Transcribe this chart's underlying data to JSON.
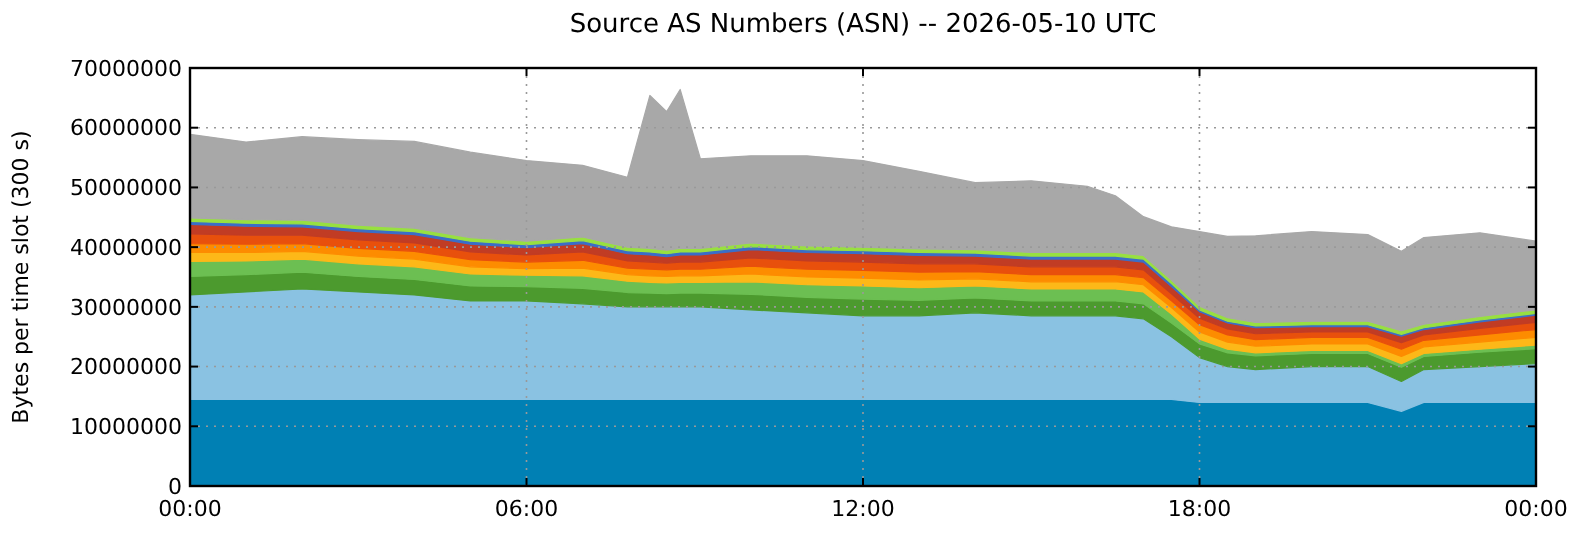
{
  "chart_data": {
    "type": "area",
    "stacked": true,
    "title": "Source AS Numbers (ASN) -- 2026-05-10 UTC",
    "ylabel": "Bytes per time slot (300 s)",
    "x": [
      0,
      1,
      2,
      3,
      4,
      5,
      6,
      7,
      7.8,
      8.2,
      8.5,
      8.74,
      9.1,
      10,
      11,
      12,
      13,
      14,
      15,
      16,
      16.5,
      17,
      17.5,
      18,
      18.5,
      19,
      20,
      21,
      21.6,
      22,
      23,
      24
    ],
    "series": [
      {
        "color": "#0080b4",
        "values": [
          14500000.0,
          14500000.0,
          14500000.0,
          14500000.0,
          14500000.0,
          14500000.0,
          14500000.0,
          14500000.0,
          14500000.0,
          14500000.0,
          14500000.0,
          14500000.0,
          14500000.0,
          14500000.0,
          14500000.0,
          14500000.0,
          14500000.0,
          14500000.0,
          14500000.0,
          14500000.0,
          14500000.0,
          14500000.0,
          14500000.0,
          14000000.0,
          14000000.0,
          14000000.0,
          14000000.0,
          14000000.0,
          12500000.0,
          14000000.0,
          14000000.0,
          14000000.0
        ]
      },
      {
        "color": "#8ac2e2",
        "values": [
          17500000.0,
          18000000.0,
          18500000.0,
          18000000.0,
          17500000.0,
          16500000.0,
          16500000.0,
          16000000.0,
          15500000.0,
          15500000.0,
          15500000.0,
          15500000.0,
          15500000.0,
          15000000.0,
          14500000.0,
          14000000.0,
          14000000.0,
          14500000.0,
          14000000.0,
          14000000.0,
          14000000.0,
          13500000.0,
          10500000.0,
          7500000.0,
          6000000.0,
          5500000.0,
          6000000.0,
          6000000.0,
          5000000.0,
          5500000.0,
          6000000.0,
          6500000.0
        ]
      },
      {
        "color": "#4c9a2e",
        "values": [
          3100000.0,
          2900000.0,
          2800000.0,
          2600000.0,
          2600000.0,
          2500000.0,
          2400000.0,
          2600000.0,
          2400000.0,
          2300000.0,
          2200000.0,
          2300000.0,
          2300000.0,
          2600000.0,
          2600000.0,
          2800000.0,
          2600000.0,
          2500000.0,
          2500000.0,
          2500000.0,
          2500000.0,
          2500000.0,
          2300000.0,
          2300000.0,
          2300000.0,
          2300000.0,
          2200000.0,
          2200000.0,
          2400000.0,
          2200000.0,
          2400000.0,
          2500000.0
        ]
      },
      {
        "color": "#6cbf52",
        "values": [
          2500000.0,
          2300000.0,
          2200000.0,
          2100000.0,
          2100000.0,
          2000000.0,
          1900000.0,
          2100000.0,
          1900000.0,
          1800000.0,
          1800000.0,
          1800000.0,
          1800000.0,
          2100000.0,
          2100000.0,
          2200000.0,
          2100000.0,
          2000000.0,
          2000000.0,
          2000000.0,
          2000000.0,
          2000000.0,
          1500000.0,
          800000.0,
          600000.0,
          500000.0,
          500000.0,
          500000.0,
          600000.0,
          500000.0,
          500000.0,
          600000.0
        ]
      },
      {
        "color": "#fdb818",
        "values": [
          1500000.0,
          1400000.0,
          1300000.0,
          1300000.0,
          1300000.0,
          1200000.0,
          1100000.0,
          1300000.0,
          1100000.0,
          1100000.0,
          1100000.0,
          1100000.0,
          1100000.0,
          1300000.0,
          1300000.0,
          1300000.0,
          1300000.0,
          1200000.0,
          1200000.0,
          1200000.0,
          1200000.0,
          1200000.0,
          1100000.0,
          1200000.0,
          1200000.0,
          1100000.0,
          1100000.0,
          1100000.0,
          1200000.0,
          1100000.0,
          1200000.0,
          1300000.0
        ]
      },
      {
        "color": "#fd8c00",
        "values": [
          1500000.0,
          1400000.0,
          1300000.0,
          1300000.0,
          1300000.0,
          1200000.0,
          1100000.0,
          1300000.0,
          1100000.0,
          1100000.0,
          1100000.0,
          1100000.0,
          1100000.0,
          1300000.0,
          1300000.0,
          1300000.0,
          1300000.0,
          1200000.0,
          1200000.0,
          1200000.0,
          1200000.0,
          1200000.0,
          1100000.0,
          1200000.0,
          1200000.0,
          1100000.0,
          1100000.0,
          1100000.0,
          1200000.0,
          1100000.0,
          1200000.0,
          1300000.0
        ]
      },
      {
        "color": "#e8500c",
        "values": [
          1600000.0,
          1500000.0,
          1400000.0,
          1400000.0,
          1400000.0,
          1300000.0,
          1200000.0,
          1400000.0,
          1200000.0,
          1200000.0,
          1100000.0,
          1200000.0,
          1200000.0,
          1400000.0,
          1400000.0,
          1400000.0,
          1400000.0,
          1300000.0,
          1300000.0,
          1300000.0,
          1300000.0,
          1300000.0,
          1200000.0,
          1100000.0,
          1000000.0,
          1000000.0,
          900000.0,
          900000.0,
          1100000.0,
          900000.0,
          1100000.0,
          1200000.0
        ]
      },
      {
        "color": "#c13c24",
        "values": [
          1600000.0,
          1500000.0,
          1400000.0,
          1400000.0,
          1400000.0,
          1300000.0,
          1200000.0,
          1400000.0,
          1200000.0,
          1200000.0,
          1100000.0,
          1200000.0,
          1200000.0,
          1400000.0,
          1400000.0,
          1400000.0,
          1400000.0,
          1300000.0,
          1300000.0,
          1300000.0,
          1300000.0,
          1300000.0,
          1200000.0,
          1100000.0,
          1000000.0,
          1000000.0,
          900000.0,
          900000.0,
          1100000.0,
          900000.0,
          1100000.0,
          1200000.0
        ]
      },
      {
        "color": "#3a6ec8",
        "values": [
          500000.0,
          500000.0,
          500000.0,
          500000.0,
          500000.0,
          500000.0,
          500000.0,
          500000.0,
          500000.0,
          500000.0,
          500000.0,
          500000.0,
          500000.0,
          500000.0,
          500000.0,
          500000.0,
          500000.0,
          500000.0,
          500000.0,
          500000.0,
          500000.0,
          500000.0,
          500000.0,
          300000.0,
          300000.0,
          300000.0,
          300000.0,
          300000.0,
          300000.0,
          300000.0,
          300000.0,
          300000.0
        ]
      },
      {
        "color": "#98e040",
        "values": [
          600000.0,
          600000.0,
          600000.0,
          600000.0,
          600000.0,
          600000.0,
          600000.0,
          600000.0,
          600000.0,
          600000.0,
          600000.0,
          600000.0,
          600000.0,
          600000.0,
          600000.0,
          600000.0,
          600000.0,
          600000.0,
          600000.0,
          600000.0,
          600000.0,
          600000.0,
          600000.0,
          600000.0,
          600000.0,
          600000.0,
          600000.0,
          600000.0,
          600000.0,
          600000.0,
          600000.0,
          600000.0
        ]
      },
      {
        "color": "#a8a8a8",
        "values": [
          14000000.0,
          13000000.0,
          14000000.0,
          14300000.0,
          14500000.0,
          14300000.0,
          13500000.0,
          12000000.0,
          11700000.0,
          25600000.0,
          23200000.0,
          26600000.0,
          15000000.0,
          14600000.0,
          15100000.0,
          14500000.0,
          13000000.0,
          11200000.0,
          12000000.0,
          11100000.0,
          9500000.0,
          6500000.0,
          8900000.0,
          12500000.0,
          13600000.0,
          14500000.0,
          15000000.0,
          14500000.0,
          13300000.0,
          14500000.0,
          14000000.0,
          11500000.0
        ]
      }
    ],
    "xlim": [
      0,
      24
    ],
    "xticks": [
      {
        "value": 0,
        "label": "00:00"
      },
      {
        "value": 6,
        "label": "06:00"
      },
      {
        "value": 12,
        "label": "12:00"
      },
      {
        "value": 18,
        "label": "18:00"
      },
      {
        "value": 24,
        "label": "00:00"
      }
    ],
    "ylim": [
      0,
      70000000
    ],
    "yticks": [
      0,
      10000000,
      20000000,
      30000000,
      40000000,
      50000000,
      60000000,
      70000000
    ],
    "grid": true
  }
}
